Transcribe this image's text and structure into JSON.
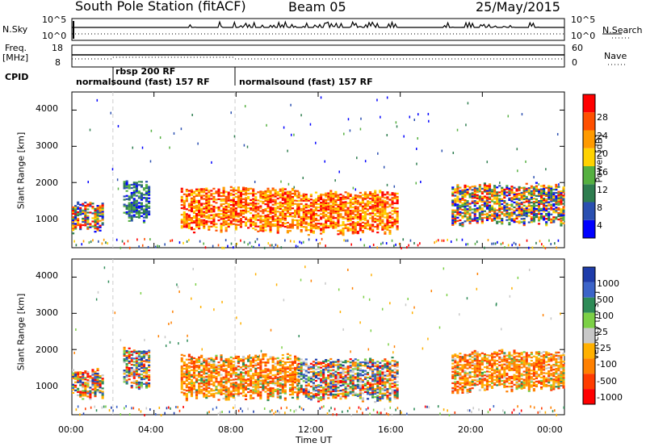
{
  "header": {
    "station": "South Pole Station (fitACF)",
    "beam": "Beam 05",
    "date": "25/May/2015"
  },
  "sky_panel": {
    "left_label": "N.Sky",
    "left_ticks": [
      "10^5",
      "10^0"
    ],
    "right_label": "N.Search",
    "right_ticks": [
      "10^5",
      "10^0"
    ]
  },
  "freq_panel": {
    "left_label_1": "Freq.",
    "left_label_2": "[MHz]",
    "left_ticks": [
      "18",
      "8"
    ],
    "right_label": "Nave",
    "right_ticks": [
      "60",
      "0"
    ]
  },
  "cpid": {
    "label": "CPID",
    "segments": [
      {
        "text": "normalsound (fast) 157 RF"
      },
      {
        "text": "rbsp 200 RF"
      },
      {
        "text": "normalsound (fast) 157 RF"
      }
    ]
  },
  "chart_data": [
    {
      "type": "heatmap",
      "quantity": "power",
      "ylabel": "Slant Range [km]",
      "xlabel": "",
      "ylim": [
        200,
        4500
      ],
      "yticks": [
        "1000",
        "2000",
        "3000",
        "4000"
      ],
      "colorbar_label": "Power [dB]",
      "colorbar_ticks": [
        "4",
        "8",
        "12",
        "16",
        "20",
        "24",
        "28"
      ],
      "colorbar_colors": [
        "#0000ff",
        "#2a4fb0",
        "#2e7d4f",
        "#55b040",
        "#ffd200",
        "#ff9a00",
        "#ff5000",
        "#ff0000"
      ],
      "echo_regions": [
        {
          "t0": 0.0,
          "t1": 1.5,
          "r0": 700,
          "r1": 1400,
          "level": "mid"
        },
        {
          "t0": 2.5,
          "t1": 3.8,
          "r0": 1000,
          "r1": 2000,
          "level": "low"
        },
        {
          "t0": 5.3,
          "t1": 11.0,
          "r0": 700,
          "r1": 1800,
          "level": "high"
        },
        {
          "t0": 11.0,
          "t1": 15.8,
          "r0": 650,
          "r1": 1700,
          "level": "high"
        },
        {
          "t0": 18.5,
          "t1": 24.0,
          "r0": 900,
          "r1": 1900,
          "level": "mid"
        }
      ]
    },
    {
      "type": "heatmap",
      "quantity": "velocity",
      "ylabel": "Slant Range [km]",
      "xlabel": "Time UT",
      "ylim": [
        200,
        4500
      ],
      "yticks": [
        "1000",
        "2000",
        "3000",
        "4000"
      ],
      "xticks": [
        "00:00",
        "04:00",
        "08:00",
        "12:00",
        "16:00",
        "20:00",
        "00:00"
      ],
      "xlim_hours": [
        0,
        24
      ],
      "colorbar_label": "Velocity [m s⁻¹]",
      "colorbar_ticks": [
        "1000",
        "500",
        "100",
        "25",
        "-25",
        "-100",
        "-500",
        "-1000"
      ],
      "colorbar_colors": [
        "#1e3caa",
        "#3c64c8",
        "#2e8b57",
        "#7cd046",
        "#c8c8c8",
        "#ffb000",
        "#ff8000",
        "#ff3c00",
        "#ff0000"
      ],
      "echo_regions": [
        {
          "t0": 0.0,
          "t1": 1.5,
          "r0": 700,
          "r1": 1400,
          "level": "mixed"
        },
        {
          "t0": 2.5,
          "t1": 3.8,
          "r0": 1000,
          "r1": 2000,
          "level": "mixed"
        },
        {
          "t0": 5.3,
          "t1": 11.0,
          "r0": 700,
          "r1": 1800,
          "level": "negative"
        },
        {
          "t0": 11.0,
          "t1": 15.8,
          "r0": 650,
          "r1": 1700,
          "level": "mixed"
        },
        {
          "t0": 18.5,
          "t1": 24.0,
          "r0": 900,
          "r1": 1900,
          "level": "negative"
        }
      ]
    }
  ]
}
